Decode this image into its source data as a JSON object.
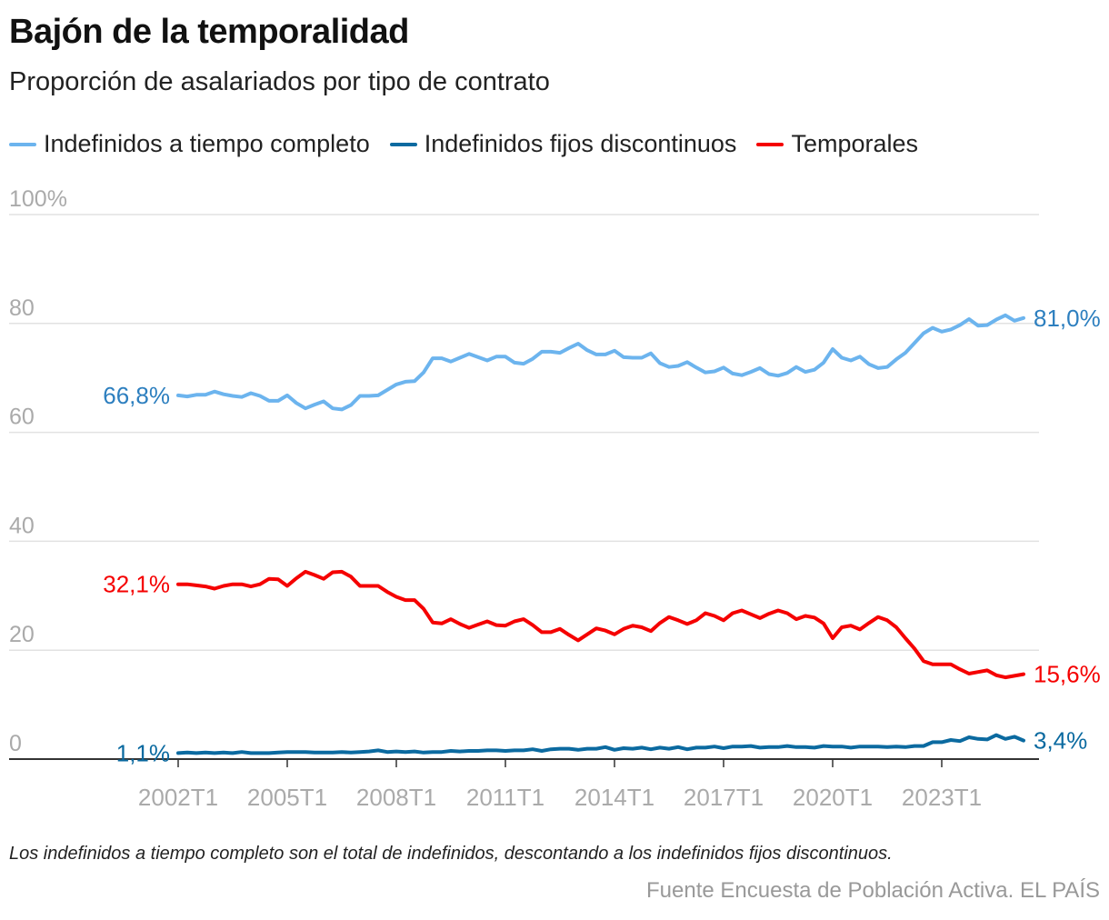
{
  "chart_data": {
    "type": "line",
    "title": "Bajón de la temporalidad",
    "subtitle": "Proporción de asalariados por tipo de contrato",
    "x_start": "2002T1",
    "x_end": "2025T2",
    "x_ticks": [
      "2002T1",
      "2005T1",
      "2008T1",
      "2011T1",
      "2014T1",
      "2017T1",
      "2020T1",
      "2023T1"
    ],
    "y_ticks": [
      {
        "value": 0,
        "label": "0"
      },
      {
        "value": 20,
        "label": "20"
      },
      {
        "value": 40,
        "label": "40"
      },
      {
        "value": 60,
        "label": "60"
      },
      {
        "value": 80,
        "label": "80"
      },
      {
        "value": 100,
        "label": "100%"
      }
    ],
    "ylim": [
      0,
      100
    ],
    "grid": true,
    "legend_placement": "top-left",
    "series": [
      {
        "name": "Indefinidos a tiempo completo",
        "color": "#6cb4ee",
        "label_color": "#2d7fbf",
        "start_label": "66,8%",
        "end_label": "81,0%",
        "values": [
          66.8,
          66.6,
          66.9,
          66.9,
          67.5,
          67.0,
          66.7,
          66.5,
          67.2,
          66.7,
          65.8,
          65.8,
          66.8,
          65.4,
          64.4,
          65.1,
          65.7,
          64.4,
          64.2,
          65.0,
          66.7,
          66.7,
          66.8,
          67.8,
          68.8,
          69.3,
          69.4,
          71.0,
          73.6,
          73.6,
          73.0,
          73.7,
          74.4,
          73.8,
          73.2,
          73.9,
          73.9,
          72.8,
          72.6,
          73.5,
          74.8,
          74.8,
          74.6,
          75.5,
          76.3,
          75.1,
          74.3,
          74.3,
          75.0,
          73.8,
          73.7,
          73.7,
          74.5,
          72.7,
          72.0,
          72.2,
          72.9,
          71.9,
          71.0,
          71.2,
          71.9,
          70.8,
          70.5,
          71.1,
          71.8,
          70.7,
          70.4,
          70.9,
          72.0,
          71.1,
          71.5,
          72.8,
          75.3,
          73.7,
          73.2,
          73.9,
          72.5,
          71.8,
          72.0,
          73.4,
          74.6,
          76.4,
          78.2,
          79.2,
          78.5,
          78.9,
          79.7,
          80.8,
          79.6,
          79.7,
          80.7,
          81.5,
          80.5,
          81.0
        ]
      },
      {
        "name": "Indefinidos fijos discontinuos",
        "color": "#0b6aa0",
        "label_color": "#0b6aa0",
        "start_label": "1,1%",
        "end_label": "3,4%",
        "values": [
          1.1,
          1.2,
          1.1,
          1.2,
          1.1,
          1.2,
          1.1,
          1.3,
          1.1,
          1.1,
          1.1,
          1.2,
          1.3,
          1.3,
          1.3,
          1.2,
          1.2,
          1.2,
          1.3,
          1.2,
          1.3,
          1.4,
          1.6,
          1.3,
          1.4,
          1.3,
          1.4,
          1.2,
          1.3,
          1.3,
          1.5,
          1.4,
          1.5,
          1.5,
          1.6,
          1.6,
          1.5,
          1.6,
          1.6,
          1.8,
          1.5,
          1.8,
          1.9,
          1.9,
          1.7,
          1.9,
          1.9,
          2.2,
          1.7,
          2.0,
          1.9,
          2.1,
          1.8,
          2.1,
          1.9,
          2.2,
          1.8,
          2.1,
          2.1,
          2.3,
          2.0,
          2.3,
          2.3,
          2.4,
          2.1,
          2.2,
          2.2,
          2.4,
          2.2,
          2.2,
          2.1,
          2.4,
          2.3,
          2.3,
          2.1,
          2.3,
          2.3,
          2.3,
          2.2,
          2.3,
          2.2,
          2.4,
          2.4,
          3.1,
          3.1,
          3.5,
          3.3,
          4.0,
          3.7,
          3.6,
          4.4,
          3.7,
          4.1,
          3.4
        ]
      },
      {
        "name": "Temporales",
        "color": "#f50000",
        "label_color": "#f50000",
        "start_label": "32,1%",
        "end_label": "15,6%",
        "values": [
          32.1,
          32.1,
          31.9,
          31.7,
          31.3,
          31.8,
          32.1,
          32.1,
          31.7,
          32.1,
          33.1,
          33.0,
          31.8,
          33.2,
          34.4,
          33.8,
          33.1,
          34.3,
          34.4,
          33.5,
          31.8,
          31.8,
          31.8,
          30.7,
          29.8,
          29.2,
          29.2,
          27.6,
          25.1,
          24.9,
          25.7,
          24.8,
          24.1,
          24.7,
          25.3,
          24.6,
          24.5,
          25.3,
          25.7,
          24.6,
          23.3,
          23.3,
          23.9,
          22.8,
          21.8,
          22.9,
          24.0,
          23.6,
          22.9,
          23.9,
          24.5,
          24.2,
          23.5,
          25.0,
          26.1,
          25.5,
          24.8,
          25.5,
          26.8,
          26.3,
          25.5,
          26.8,
          27.3,
          26.6,
          25.9,
          26.7,
          27.3,
          26.8,
          25.7,
          26.3,
          26.0,
          24.9,
          22.2,
          24.2,
          24.5,
          23.8,
          25.0,
          26.1,
          25.5,
          24.2,
          22.2,
          20.3,
          18.0,
          17.4,
          17.4,
          17.4,
          16.5,
          15.7,
          16.0,
          16.3,
          15.4,
          15.0,
          15.3,
          15.6
        ]
      }
    ]
  },
  "footer": {
    "note": "Los indefinidos a tiempo completo son el total de indefinidos, descontando a los indefinidos fijos discontinuos.",
    "source": "Fuente Encuesta de Población Activa. EL PAÍS"
  }
}
